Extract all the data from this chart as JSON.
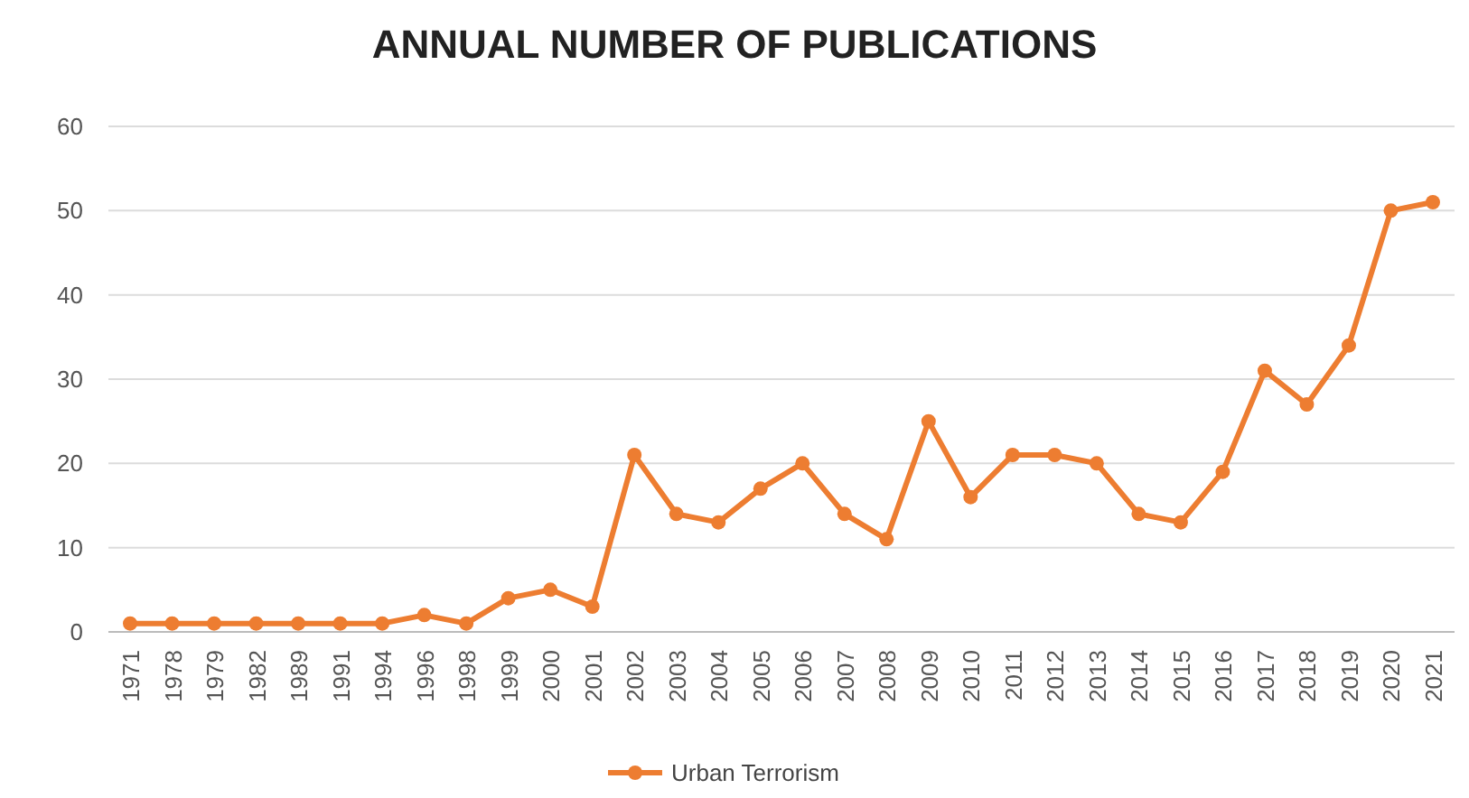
{
  "chart_data": {
    "type": "line",
    "title": "ANNUAL NUMBER OF PUBLICATIONS",
    "categories": [
      "1971",
      "1978",
      "1979",
      "1982",
      "1989",
      "1991",
      "1994",
      "1996",
      "1998",
      "1999",
      "2000",
      "2001",
      "2002",
      "2003",
      "2004",
      "2005",
      "2006",
      "2007",
      "2008",
      "2009",
      "2010",
      "2011",
      "2012",
      "2013",
      "2014",
      "2015",
      "2016",
      "2017",
      "2018",
      "2019",
      "2020",
      "2021"
    ],
    "series": [
      {
        "name": "Urban Terrorism",
        "color": "#ed7d31",
        "values": [
          1,
          1,
          1,
          1,
          1,
          1,
          1,
          2,
          1,
          4,
          5,
          3,
          21,
          14,
          13,
          17,
          20,
          14,
          11,
          25,
          16,
          21,
          21,
          20,
          14,
          13,
          19,
          31,
          27,
          34,
          50,
          51
        ]
      }
    ],
    "ylim": [
      0,
      60
    ],
    "yticks": [
      0,
      10,
      20,
      30,
      40,
      50,
      60
    ],
    "grid": "y",
    "legend": "bottom",
    "marker": "circle",
    "line_style": "solid"
  }
}
